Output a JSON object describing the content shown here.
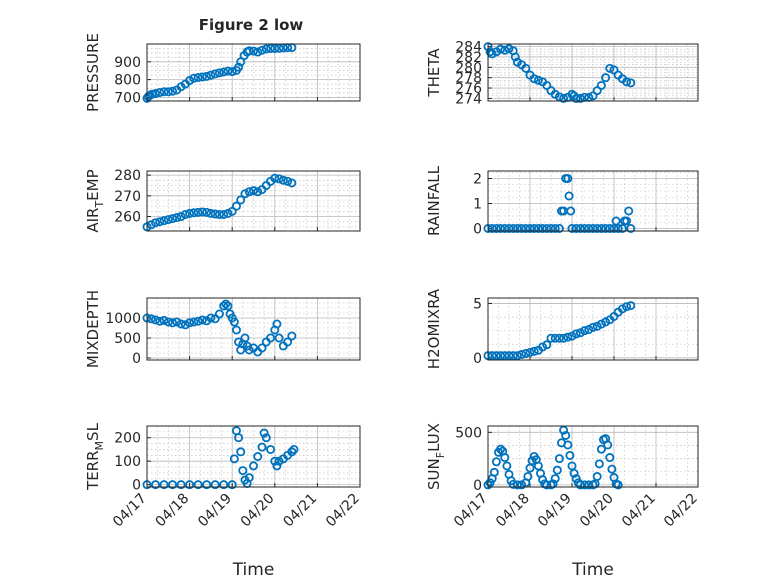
{
  "figure_title": "Figure 2 low",
  "colors": {
    "marker": "#0072BD",
    "axis": "#262626",
    "grid": "#b8b8b8",
    "background": "#ffffff"
  },
  "chart_data": [
    {
      "type": "scatter",
      "ylabel": "PRESSURE",
      "ylim": [
        680,
        1000
      ],
      "yticks": [
        700,
        800,
        900
      ],
      "xlim": [
        "04/17",
        "04/22"
      ],
      "xticks": [],
      "grid": true,
      "marker": "open-circle",
      "points": [
        [
          0,
          695
        ],
        [
          0.03,
          705
        ],
        [
          0.07,
          712
        ],
        [
          0.12,
          718
        ],
        [
          0.2,
          722
        ],
        [
          0.3,
          728
        ],
        [
          0.4,
          732
        ],
        [
          0.5,
          732
        ],
        [
          0.6,
          735
        ],
        [
          0.7,
          742
        ],
        [
          0.8,
          760
        ],
        [
          0.9,
          775
        ],
        [
          1.0,
          795
        ],
        [
          1.1,
          808
        ],
        [
          1.2,
          812
        ],
        [
          1.3,
          815
        ],
        [
          1.4,
          818
        ],
        [
          1.5,
          825
        ],
        [
          1.6,
          832
        ],
        [
          1.7,
          838
        ],
        [
          1.8,
          843
        ],
        [
          1.9,
          848
        ],
        [
          2.0,
          845
        ],
        [
          2.1,
          852
        ],
        [
          2.15,
          870
        ],
        [
          2.2,
          900
        ],
        [
          2.28,
          935
        ],
        [
          2.35,
          955
        ],
        [
          2.4,
          962
        ],
        [
          2.5,
          960
        ],
        [
          2.6,
          955
        ],
        [
          2.7,
          965
        ],
        [
          2.8,
          972
        ],
        [
          2.9,
          975
        ],
        [
          3.0,
          975
        ],
        [
          3.1,
          976
        ],
        [
          3.2,
          978
        ],
        [
          3.3,
          980
        ],
        [
          3.4,
          980
        ]
      ]
    },
    {
      "type": "scatter",
      "ylabel": "THETA",
      "ylim": [
        273.5,
        284.5
      ],
      "yticks": [
        274,
        276,
        278,
        280,
        282,
        284
      ],
      "xlim": [
        "04/17",
        "04/22"
      ],
      "xticks": [],
      "grid": true,
      "marker": "open-circle",
      "points": [
        [
          0,
          284
        ],
        [
          0.05,
          283
        ],
        [
          0.1,
          282.6
        ],
        [
          0.2,
          283
        ],
        [
          0.3,
          283.5
        ],
        [
          0.4,
          283.3
        ],
        [
          0.5,
          283.6
        ],
        [
          0.6,
          283.2
        ],
        [
          0.65,
          282
        ],
        [
          0.7,
          281
        ],
        [
          0.8,
          280.5
        ],
        [
          0.9,
          279.8
        ],
        [
          1.0,
          278.5
        ],
        [
          1.1,
          277.8
        ],
        [
          1.2,
          277.5
        ],
        [
          1.3,
          277.2
        ],
        [
          1.4,
          276.5
        ],
        [
          1.5,
          275.5
        ],
        [
          1.6,
          274.8
        ],
        [
          1.7,
          274.3
        ],
        [
          1.8,
          274
        ],
        [
          1.9,
          274.2
        ],
        [
          2.0,
          274.8
        ],
        [
          2.05,
          274.5
        ],
        [
          2.1,
          274
        ],
        [
          2.2,
          274
        ],
        [
          2.3,
          274.2
        ],
        [
          2.4,
          274.2
        ],
        [
          2.5,
          274.5
        ],
        [
          2.6,
          275.5
        ],
        [
          2.7,
          276.5
        ],
        [
          2.8,
          278
        ],
        [
          2.9,
          279.8
        ],
        [
          3.0,
          279.5
        ],
        [
          3.1,
          278.5
        ],
        [
          3.2,
          277.8
        ],
        [
          3.3,
          277.2
        ],
        [
          3.4,
          277
        ]
      ]
    },
    {
      "type": "scatter",
      "ylabel": "AIR_TEMP",
      "ylim": [
        253,
        282
      ],
      "yticks": [
        260,
        270,
        280
      ],
      "xlim": [
        "04/17",
        "04/22"
      ],
      "xticks": [],
      "grid": true,
      "marker": "open-circle",
      "points": [
        [
          0,
          255
        ],
        [
          0.1,
          256
        ],
        [
          0.2,
          257
        ],
        [
          0.3,
          257.5
        ],
        [
          0.4,
          258
        ],
        [
          0.5,
          258.5
        ],
        [
          0.6,
          259
        ],
        [
          0.7,
          259.5
        ],
        [
          0.8,
          260
        ],
        [
          0.9,
          261
        ],
        [
          1.0,
          261.5
        ],
        [
          1.1,
          261.8
        ],
        [
          1.2,
          262
        ],
        [
          1.3,
          262.2
        ],
        [
          1.4,
          262
        ],
        [
          1.5,
          261.5
        ],
        [
          1.6,
          261.2
        ],
        [
          1.7,
          261
        ],
        [
          1.8,
          261
        ],
        [
          1.9,
          261.5
        ],
        [
          2.0,
          262.5
        ],
        [
          2.1,
          265
        ],
        [
          2.2,
          268
        ],
        [
          2.3,
          271
        ],
        [
          2.4,
          272
        ],
        [
          2.5,
          272.5
        ],
        [
          2.6,
          272
        ],
        [
          2.7,
          273
        ],
        [
          2.8,
          275
        ],
        [
          2.9,
          277
        ],
        [
          3.0,
          278.5
        ],
        [
          3.1,
          278.2
        ],
        [
          3.2,
          277.5
        ],
        [
          3.3,
          277
        ],
        [
          3.4,
          276.2
        ]
      ]
    },
    {
      "type": "scatter",
      "ylabel": "RAINFALL",
      "ylim": [
        -0.1,
        2.3
      ],
      "yticks": [
        0,
        1,
        2
      ],
      "xlim": [
        "04/17",
        "04/22"
      ],
      "xticks": [],
      "grid": true,
      "marker": "open-circle",
      "points": [
        [
          0,
          0
        ],
        [
          0.1,
          0
        ],
        [
          0.2,
          0
        ],
        [
          0.3,
          0
        ],
        [
          0.4,
          0
        ],
        [
          0.5,
          0
        ],
        [
          0.6,
          0
        ],
        [
          0.7,
          0
        ],
        [
          0.8,
          0
        ],
        [
          0.9,
          0
        ],
        [
          1.0,
          0
        ],
        [
          1.1,
          0
        ],
        [
          1.2,
          0
        ],
        [
          1.3,
          0
        ],
        [
          1.4,
          0
        ],
        [
          1.5,
          0
        ],
        [
          1.6,
          0
        ],
        [
          1.7,
          0
        ],
        [
          1.75,
          0.7
        ],
        [
          1.8,
          0.7
        ],
        [
          1.85,
          2
        ],
        [
          1.9,
          2
        ],
        [
          1.93,
          1.3
        ],
        [
          1.97,
          0.7
        ],
        [
          2.0,
          0
        ],
        [
          2.1,
          0
        ],
        [
          2.2,
          0
        ],
        [
          2.3,
          0
        ],
        [
          2.4,
          0
        ],
        [
          2.5,
          0
        ],
        [
          2.6,
          0
        ],
        [
          2.7,
          0
        ],
        [
          2.8,
          0
        ],
        [
          2.9,
          0
        ],
        [
          3.0,
          0
        ],
        [
          3.05,
          0.3
        ],
        [
          3.1,
          0
        ],
        [
          3.2,
          0
        ],
        [
          3.25,
          0.3
        ],
        [
          3.3,
          0.3
        ],
        [
          3.35,
          0.7
        ],
        [
          3.4,
          0
        ]
      ]
    },
    {
      "type": "scatter",
      "ylabel": "MIXDEPTH",
      "ylim": [
        -50,
        1500
      ],
      "yticks": [
        0,
        500,
        1000
      ],
      "xlim": [
        "04/17",
        "04/22"
      ],
      "xticks": [],
      "grid": true,
      "marker": "open-circle",
      "points": [
        [
          0,
          1000
        ],
        [
          0.1,
          980
        ],
        [
          0.2,
          950
        ],
        [
          0.3,
          920
        ],
        [
          0.4,
          940
        ],
        [
          0.5,
          900
        ],
        [
          0.6,
          880
        ],
        [
          0.7,
          900
        ],
        [
          0.8,
          850
        ],
        [
          0.9,
          830
        ],
        [
          1.0,
          880
        ],
        [
          1.1,
          900
        ],
        [
          1.2,
          920
        ],
        [
          1.3,
          950
        ],
        [
          1.4,
          930
        ],
        [
          1.5,
          1000
        ],
        [
          1.6,
          980
        ],
        [
          1.7,
          1100
        ],
        [
          1.8,
          1300
        ],
        [
          1.85,
          1350
        ],
        [
          1.9,
          1300
        ],
        [
          1.95,
          1100
        ],
        [
          2.0,
          1000
        ],
        [
          2.05,
          900
        ],
        [
          2.1,
          700
        ],
        [
          2.15,
          400
        ],
        [
          2.2,
          200
        ],
        [
          2.25,
          350
        ],
        [
          2.3,
          500
        ],
        [
          2.35,
          300
        ],
        [
          2.4,
          200
        ],
        [
          2.5,
          250
        ],
        [
          2.6,
          150
        ],
        [
          2.7,
          250
        ],
        [
          2.8,
          400
        ],
        [
          2.9,
          500
        ],
        [
          3.0,
          700
        ],
        [
          3.05,
          850
        ],
        [
          3.1,
          500
        ],
        [
          3.2,
          300
        ],
        [
          3.3,
          400
        ],
        [
          3.4,
          550
        ]
      ]
    },
    {
      "type": "scatter",
      "ylabel": "H2OMIXRA",
      "ylim": [
        -0.2,
        5.5
      ],
      "yticks": [
        0,
        5
      ],
      "xlim": [
        "04/17",
        "04/22"
      ],
      "xticks": [],
      "grid": true,
      "marker": "open-circle",
      "points": [
        [
          0,
          0.2
        ],
        [
          0.1,
          0.2
        ],
        [
          0.2,
          0.2
        ],
        [
          0.3,
          0.2
        ],
        [
          0.4,
          0.2
        ],
        [
          0.5,
          0.2
        ],
        [
          0.6,
          0.2
        ],
        [
          0.7,
          0.2
        ],
        [
          0.8,
          0.3
        ],
        [
          0.9,
          0.4
        ],
        [
          1.0,
          0.5
        ],
        [
          1.1,
          0.6
        ],
        [
          1.2,
          0.7
        ],
        [
          1.3,
          1.0
        ],
        [
          1.4,
          1.2
        ],
        [
          1.5,
          1.8
        ],
        [
          1.6,
          1.8
        ],
        [
          1.7,
          1.8
        ],
        [
          1.8,
          1.8
        ],
        [
          1.9,
          1.9
        ],
        [
          2.0,
          2.0
        ],
        [
          2.1,
          2.2
        ],
        [
          2.2,
          2.3
        ],
        [
          2.3,
          2.5
        ],
        [
          2.4,
          2.6
        ],
        [
          2.5,
          2.8
        ],
        [
          2.6,
          2.9
        ],
        [
          2.7,
          3.1
        ],
        [
          2.8,
          3.3
        ],
        [
          2.9,
          3.5
        ],
        [
          3.0,
          3.8
        ],
        [
          3.1,
          4.2
        ],
        [
          3.2,
          4.5
        ],
        [
          3.3,
          4.7
        ],
        [
          3.4,
          4.8
        ]
      ]
    },
    {
      "type": "scatter",
      "ylabel": "TERR_MSL",
      "ylim": [
        -10,
        250
      ],
      "yticks": [
        0,
        100,
        200
      ],
      "xlim": [
        "04/17",
        "04/22"
      ],
      "xticks": [
        "04/17",
        "04/18",
        "04/19",
        "04/20",
        "04/21",
        "04/22"
      ],
      "grid": true,
      "marker": "open-circle",
      "xlabel": "Time",
      "points": [
        [
          0,
          0
        ],
        [
          0.2,
          0
        ],
        [
          0.4,
          0
        ],
        [
          0.6,
          0
        ],
        [
          0.8,
          0
        ],
        [
          1.0,
          0
        ],
        [
          1.2,
          0
        ],
        [
          1.4,
          0
        ],
        [
          1.6,
          0
        ],
        [
          1.8,
          0
        ],
        [
          2.0,
          0
        ],
        [
          2.05,
          110
        ],
        [
          2.1,
          230
        ],
        [
          2.15,
          200
        ],
        [
          2.2,
          140
        ],
        [
          2.25,
          60
        ],
        [
          2.3,
          20
        ],
        [
          2.35,
          5
        ],
        [
          2.4,
          30
        ],
        [
          2.5,
          80
        ],
        [
          2.6,
          120
        ],
        [
          2.7,
          160
        ],
        [
          2.75,
          220
        ],
        [
          2.8,
          200
        ],
        [
          2.9,
          150
        ],
        [
          3.0,
          100
        ],
        [
          3.05,
          80
        ],
        [
          3.1,
          100
        ],
        [
          3.2,
          110
        ],
        [
          3.3,
          125
        ],
        [
          3.4,
          140
        ],
        [
          3.45,
          150
        ]
      ]
    },
    {
      "type": "scatter",
      "ylabel": "SUN_FLUX",
      "ylim": [
        -20,
        560
      ],
      "yticks": [
        0,
        500
      ],
      "xlim": [
        "04/17",
        "04/22"
      ],
      "xticks": [
        "04/17",
        "04/18",
        "04/19",
        "04/20",
        "04/21",
        "04/22"
      ],
      "grid": true,
      "marker": "open-circle",
      "xlabel": "Time",
      "points": [
        [
          0,
          0
        ],
        [
          0.05,
          20
        ],
        [
          0.1,
          60
        ],
        [
          0.15,
          120
        ],
        [
          0.2,
          220
        ],
        [
          0.25,
          310
        ],
        [
          0.3,
          340
        ],
        [
          0.35,
          320
        ],
        [
          0.4,
          260
        ],
        [
          0.45,
          180
        ],
        [
          0.5,
          100
        ],
        [
          0.55,
          40
        ],
        [
          0.6,
          5
        ],
        [
          0.7,
          0
        ],
        [
          0.8,
          0
        ],
        [
          0.9,
          20
        ],
        [
          0.95,
          80
        ],
        [
          1.0,
          160
        ],
        [
          1.05,
          230
        ],
        [
          1.1,
          270
        ],
        [
          1.15,
          240
        ],
        [
          1.2,
          180
        ],
        [
          1.25,
          110
        ],
        [
          1.3,
          50
        ],
        [
          1.35,
          10
        ],
        [
          1.4,
          0
        ],
        [
          1.5,
          0
        ],
        [
          1.55,
          10
        ],
        [
          1.6,
          60
        ],
        [
          1.65,
          140
        ],
        [
          1.7,
          250
        ],
        [
          1.75,
          400
        ],
        [
          1.8,
          520
        ],
        [
          1.85,
          470
        ],
        [
          1.9,
          380
        ],
        [
          1.95,
          280
        ],
        [
          2.0,
          180
        ],
        [
          2.05,
          110
        ],
        [
          2.1,
          60
        ],
        [
          2.15,
          20
        ],
        [
          2.2,
          0
        ],
        [
          2.3,
          0
        ],
        [
          2.4,
          0
        ],
        [
          2.5,
          0
        ],
        [
          2.55,
          10
        ],
        [
          2.6,
          80
        ],
        [
          2.65,
          200
        ],
        [
          2.7,
          340
        ],
        [
          2.75,
          430
        ],
        [
          2.8,
          440
        ],
        [
          2.85,
          380
        ],
        [
          2.9,
          260
        ],
        [
          2.95,
          150
        ],
        [
          3.0,
          70
        ],
        [
          3.05,
          10
        ],
        [
          3.1,
          0
        ]
      ]
    }
  ]
}
